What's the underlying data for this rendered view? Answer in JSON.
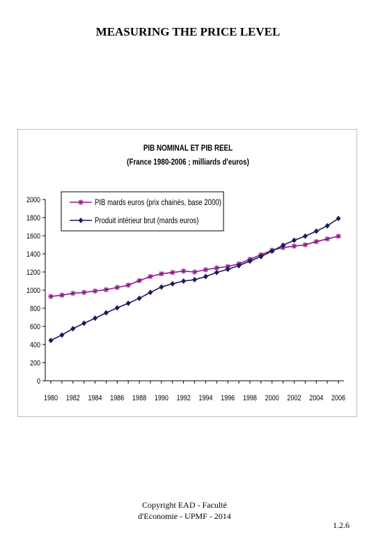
{
  "slide": {
    "title": "MEASURING THE PRICE LEVEL",
    "footer_line1": "Copyright EAD - Faculté",
    "footer_line2": "d'Economie - UPMF - 2014",
    "slide_number": "1.2.6"
  },
  "chart_data": {
    "type": "line",
    "title": "PIB NOMINAL ET PIB REEL",
    "subtitle": "(France 1980-2006 ; milliards d'euros)",
    "xlabel": "",
    "ylabel": "",
    "ylim": [
      0,
      2000
    ],
    "yticks": [
      0,
      200,
      400,
      600,
      800,
      1000,
      1200,
      1400,
      1600,
      1800,
      2000
    ],
    "xticks": [
      "1980",
      "1982",
      "1984",
      "1986",
      "1988",
      "1990",
      "1992",
      "1994",
      "1996",
      "1998",
      "2000",
      "2002",
      "2004",
      "2006"
    ],
    "grid": false,
    "legend_position": "top-left",
    "x": [
      1980,
      1981,
      1982,
      1983,
      1984,
      1985,
      1986,
      1987,
      1988,
      1989,
      1990,
      1991,
      1992,
      1993,
      1994,
      1995,
      1996,
      1997,
      1998,
      1999,
      2000,
      2001,
      2002,
      2003,
      2004,
      2005,
      2006
    ],
    "series": [
      {
        "name": "PIB mards euros (prix chainés, base 2000)",
        "color": "#8B1A8B",
        "marker": "asterisk",
        "values": [
          930,
          945,
          965,
          975,
          990,
          1005,
          1030,
          1055,
          1105,
          1150,
          1180,
          1195,
          1210,
          1200,
          1225,
          1245,
          1260,
          1290,
          1340,
          1390,
          1440,
          1470,
          1485,
          1500,
          1535,
          1565,
          1595
        ]
      },
      {
        "name": "Produit intérieur brut (mards euros)",
        "color": "#1A1A5E",
        "marker": "diamond",
        "values": [
          445,
          505,
          575,
          635,
          690,
          750,
          805,
          855,
          910,
          975,
          1035,
          1070,
          1100,
          1115,
          1150,
          1195,
          1230,
          1270,
          1320,
          1370,
          1430,
          1495,
          1550,
          1595,
          1650,
          1710,
          1790
        ]
      }
    ]
  }
}
